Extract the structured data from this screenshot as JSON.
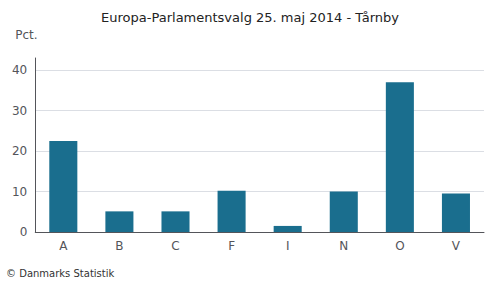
{
  "chart_data": {
    "type": "bar",
    "title": "Europa-Parlamentsvalg 25. maj 2014 - Tårnby",
    "ylabel": "Pct.",
    "annotations": [
      "© Danmarks Statistik"
    ],
    "categories": [
      "A",
      "B",
      "C",
      "F",
      "I",
      "N",
      "O",
      "V"
    ],
    "values": [
      22.5,
      5.1,
      5.1,
      10.2,
      1.5,
      10.0,
      37.0,
      9.5
    ],
    "color": "#1a6e8e",
    "ylim": [
      0,
      43
    ],
    "yticks": [
      0,
      10,
      20,
      30,
      40
    ],
    "grid": true
  }
}
